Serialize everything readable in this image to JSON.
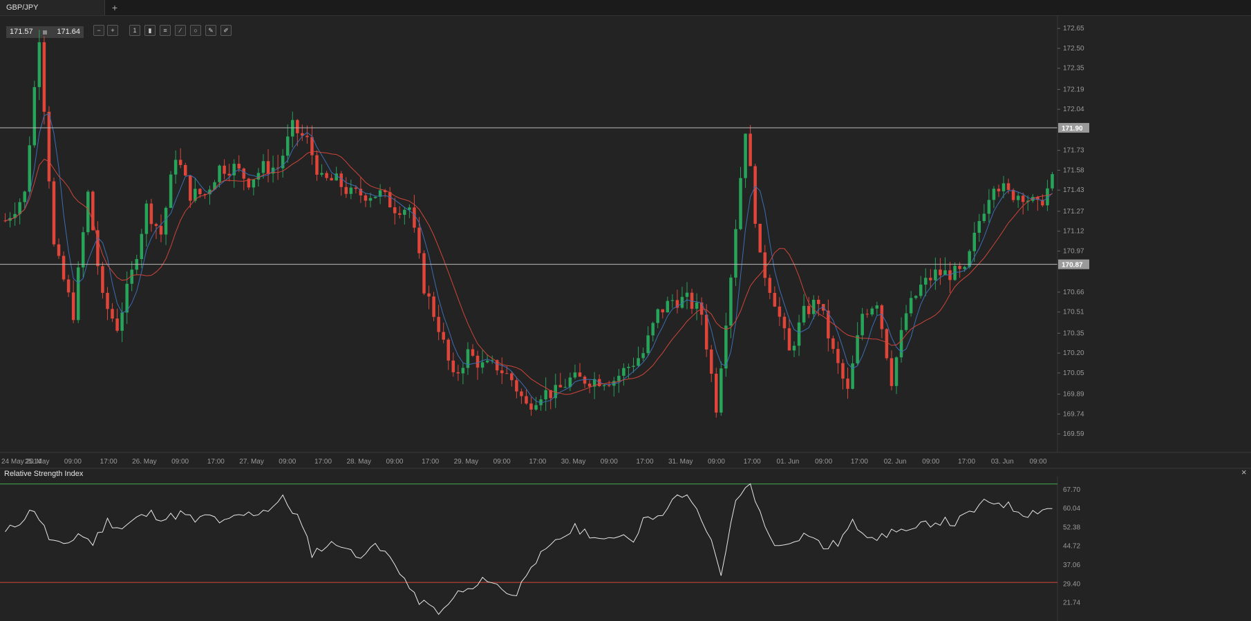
{
  "tab": {
    "title": "GBP/JPY",
    "add_label": "+"
  },
  "quote": {
    "bid": "171.57",
    "ask": "171.64"
  },
  "toolbar": {
    "icons": [
      "zoom-out-icon",
      "zoom-in-icon",
      "timeframe-icon",
      "candle-style-icon",
      "indicators-icon",
      "draw-line-icon",
      "shapes-icon",
      "edit-icon",
      "pencil-icon"
    ],
    "timeframe_label": "1"
  },
  "colors": {
    "bull": "#27a35a",
    "bear": "#e0453a",
    "ma_fast": "#3b6fb6",
    "ma_slow": "#d0453a",
    "rsi_line": "#e8e8e8",
    "level_line": "#bdbdbd",
    "rsi_upper": "#3fae4f",
    "rsi_lower": "#d94a3a",
    "background": "#232323"
  },
  "chart_data": [
    {
      "type": "candlestick",
      "symbol": "GBP/JPY",
      "ylim": [
        169.45,
        172.75
      ],
      "y_ticks": [
        "172.65",
        "172.50",
        "172.35",
        "172.19",
        "172.04",
        "171.90",
        "171.73",
        "171.58",
        "171.43",
        "171.27",
        "171.12",
        "170.97",
        "170.87",
        "170.66",
        "170.51",
        "170.35",
        "170.20",
        "170.05",
        "169.89",
        "169.74",
        "169.59"
      ],
      "x_ticks": [
        "24 May 2014",
        "25. May",
        "09:00",
        "17:00",
        "26. May",
        "09:00",
        "17:00",
        "27. May",
        "09:00",
        "17:00",
        "28. May",
        "09:00",
        "17:00",
        "29. May",
        "09:00",
        "17:00",
        "30. May",
        "09:00",
        "17:00",
        "31. May",
        "09:00",
        "17:00",
        "01. Jun",
        "09:00",
        "17:00",
        "02. Jun",
        "09:00",
        "17:00",
        "03. Jun",
        "09:00"
      ],
      "horizontal_levels": [
        {
          "label": "171.90",
          "value": 171.9
        },
        {
          "label": "170.87",
          "value": 170.87
        }
      ],
      "anchors": [
        [
          0,
          171.2
        ],
        [
          4,
          171.4
        ],
        [
          7,
          172.6
        ],
        [
          10,
          171.0
        ],
        [
          14,
          170.5
        ],
        [
          17,
          171.4
        ],
        [
          20,
          170.6
        ],
        [
          23,
          170.4
        ],
        [
          26,
          170.8
        ],
        [
          29,
          171.3
        ],
        [
          32,
          171.1
        ],
        [
          35,
          171.7
        ],
        [
          38,
          171.4
        ],
        [
          41,
          171.4
        ],
        [
          44,
          171.6
        ],
        [
          47,
          171.6
        ],
        [
          50,
          171.5
        ],
        [
          53,
          171.6
        ],
        [
          56,
          171.6
        ],
        [
          59,
          171.9
        ],
        [
          62,
          171.8
        ],
        [
          65,
          171.5
        ],
        [
          68,
          171.5
        ],
        [
          71,
          171.4
        ],
        [
          74,
          171.4
        ],
        [
          77,
          171.4
        ],
        [
          80,
          171.3
        ],
        [
          83,
          171.3
        ],
        [
          86,
          170.7
        ],
        [
          89,
          170.4
        ],
        [
          92,
          170.0
        ],
        [
          95,
          170.2
        ],
        [
          98,
          170.1
        ],
        [
          101,
          170.1
        ],
        [
          104,
          170.0
        ],
        [
          107,
          169.8
        ],
        [
          110,
          169.9
        ],
        [
          113,
          169.9
        ],
        [
          116,
          170.0
        ],
        [
          119,
          170.0
        ],
        [
          122,
          170.0
        ],
        [
          125,
          170.0
        ],
        [
          128,
          170.1
        ],
        [
          131,
          170.2
        ],
        [
          134,
          170.5
        ],
        [
          137,
          170.6
        ],
        [
          140,
          170.6
        ],
        [
          143,
          170.5
        ],
        [
          146,
          169.8
        ],
        [
          149,
          170.8
        ],
        [
          152,
          171.9
        ],
        [
          155,
          170.9
        ],
        [
          158,
          170.6
        ],
        [
          161,
          170.2
        ],
        [
          164,
          170.5
        ],
        [
          167,
          170.6
        ],
        [
          170,
          170.2
        ],
        [
          173,
          169.9
        ],
        [
          176,
          170.5
        ],
        [
          179,
          170.6
        ],
        [
          182,
          170.0
        ],
        [
          185,
          170.5
        ],
        [
          188,
          170.7
        ],
        [
          191,
          170.8
        ],
        [
          194,
          170.8
        ],
        [
          197,
          170.8
        ],
        [
          200,
          171.2
        ],
        [
          203,
          171.5
        ],
        [
          206,
          171.4
        ],
        [
          209,
          171.4
        ],
        [
          212,
          171.3
        ],
        [
          215,
          171.5
        ]
      ],
      "ma_periods": [
        5,
        12
      ]
    },
    {
      "type": "line",
      "title": "Relative Strength Index",
      "ylim": [
        16,
        73
      ],
      "y_ticks": [
        "67.70",
        "60.04",
        "52.38",
        "44.72",
        "37.06",
        "29.40",
        "21.74"
      ],
      "upper_level": 70,
      "lower_level": 30,
      "anchors": [
        [
          0,
          50
        ],
        [
          3,
          55
        ],
        [
          6,
          60
        ],
        [
          9,
          48
        ],
        [
          12,
          44
        ],
        [
          15,
          50
        ],
        [
          18,
          46
        ],
        [
          21,
          55
        ],
        [
          24,
          52
        ],
        [
          27,
          56
        ],
        [
          30,
          58
        ],
        [
          33,
          56
        ],
        [
          36,
          58
        ],
        [
          39,
          55
        ],
        [
          42,
          57
        ],
        [
          45,
          54
        ],
        [
          48,
          57
        ],
        [
          51,
          58
        ],
        [
          54,
          60
        ],
        [
          57,
          64
        ],
        [
          60,
          57
        ],
        [
          63,
          42
        ],
        [
          66,
          45
        ],
        [
          69,
          46
        ],
        [
          72,
          40
        ],
        [
          75,
          45
        ],
        [
          78,
          42
        ],
        [
          81,
          35
        ],
        [
          84,
          24
        ],
        [
          87,
          20
        ],
        [
          90,
          18
        ],
        [
          93,
          26
        ],
        [
          96,
          27
        ],
        [
          99,
          32
        ],
        [
          102,
          27
        ],
        [
          105,
          25
        ],
        [
          108,
          38
        ],
        [
          111,
          42
        ],
        [
          114,
          48
        ],
        [
          117,
          52
        ],
        [
          120,
          50
        ],
        [
          123,
          46
        ],
        [
          126,
          50
        ],
        [
          129,
          48
        ],
        [
          132,
          58
        ],
        [
          135,
          56
        ],
        [
          138,
          66
        ],
        [
          141,
          63
        ],
        [
          144,
          52
        ],
        [
          147,
          34
        ],
        [
          150,
          62
        ],
        [
          153,
          70
        ],
        [
          156,
          52
        ],
        [
          159,
          44
        ],
        [
          162,
          48
        ],
        [
          165,
          50
        ],
        [
          168,
          44
        ],
        [
          171,
          46
        ],
        [
          174,
          54
        ],
        [
          177,
          50
        ],
        [
          180,
          48
        ],
        [
          183,
          52
        ],
        [
          186,
          50
        ],
        [
          189,
          54
        ],
        [
          192,
          55
        ],
        [
          195,
          54
        ],
        [
          198,
          58
        ],
        [
          201,
          62
        ],
        [
          204,
          63
        ],
        [
          207,
          60
        ],
        [
          210,
          58
        ],
        [
          213,
          60
        ]
      ]
    }
  ]
}
